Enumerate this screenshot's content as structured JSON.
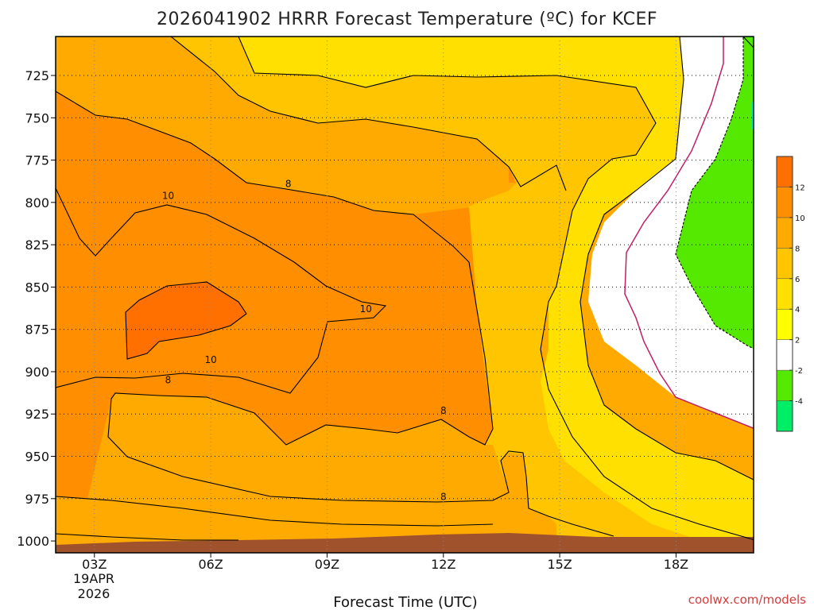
{
  "chart_data": {
    "type": "heatmap",
    "title": "2026041902 HRRR Forecast Temperature (ºC) for KCEF",
    "xlabel": "Forecast Time (UTC)",
    "credit": "coolwx.com/models",
    "x_ticks": [
      "03Z",
      "06Z",
      "09Z",
      "12Z",
      "15Z",
      "18Z"
    ],
    "x_date_lines": [
      "19APR",
      "2026"
    ],
    "y_ticks": [
      "725",
      "750",
      "775",
      "800",
      "825",
      "850",
      "875",
      "900",
      "925",
      "950",
      "975",
      "1000"
    ],
    "y_values": [
      725,
      750,
      775,
      800,
      825,
      850,
      875,
      900,
      925,
      950,
      975,
      1000
    ],
    "ylim": [
      702,
      1007
    ],
    "x_hour_range": [
      2,
      20
    ],
    "grid": true,
    "legend_placement": "right",
    "contour_labels": [
      {
        "text": "10",
        "hour": 4.9,
        "pressure": 796
      },
      {
        "text": "8",
        "hour": 8.0,
        "pressure": 789
      },
      {
        "text": "10",
        "hour": 10.0,
        "pressure": 863
      },
      {
        "text": "10",
        "hour": 6.0,
        "pressure": 893
      },
      {
        "text": "8",
        "hour": 4.9,
        "pressure": 905
      },
      {
        "text": "8",
        "hour": 12.0,
        "pressure": 923
      },
      {
        "text": "8",
        "hour": 12.0,
        "pressure": 974
      }
    ],
    "colorbar": {
      "levels": [
        -6,
        -4,
        -2,
        2,
        4,
        6,
        8,
        10,
        12,
        14
      ],
      "tick_labels": [
        "-4",
        "-2",
        "2",
        "4",
        "6",
        "8",
        "10",
        "12"
      ],
      "colors": [
        "#00ee66",
        "#55e800",
        "#ffffff",
        "#ffff00",
        "#ffe000",
        "#ffc500",
        "#ffaa00",
        "#ff8f00",
        "#ff7000"
      ]
    },
    "fill_colors": {
      "t12": "#ff7000",
      "t10": "#ff8f00",
      "t8": "#ffaa00",
      "t6": "#ffc500",
      "t4": "#ffe000",
      "t2": "#ffff00",
      "t0": "#ffffff",
      "tneg": "#55e800",
      "ground": "#a0522d",
      "frost_line": "#c0206a"
    }
  }
}
